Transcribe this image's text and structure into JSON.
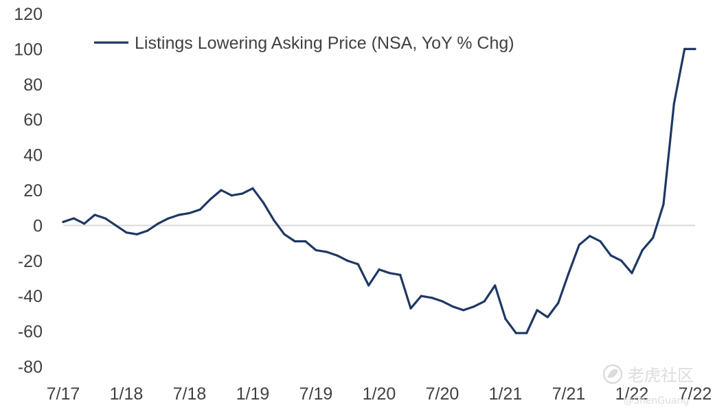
{
  "chart_data": {
    "type": "line",
    "title": "",
    "xlabel": "",
    "ylabel": "",
    "ylim": [
      -80,
      120
    ],
    "y_ticks": [
      120,
      100,
      80,
      60,
      40,
      20,
      0,
      -20,
      -40,
      -60,
      -80
    ],
    "x_ticks": [
      "7/17",
      "1/18",
      "7/18",
      "1/19",
      "7/19",
      "1/20",
      "7/20",
      "1/21",
      "7/21",
      "1/22",
      "7/22"
    ],
    "grid": false,
    "zero_line": true,
    "legend_position": "top-left",
    "series": [
      {
        "name": "Listings Lowering Asking Price (NSA, YoY % Chg)",
        "color": "#1f3864",
        "x": [
          0,
          1,
          2,
          3,
          4,
          5,
          6,
          7,
          8,
          9,
          10,
          11,
          12,
          13,
          14,
          15,
          16,
          17,
          18,
          19,
          20,
          21,
          22,
          23,
          24,
          25,
          26,
          27,
          28,
          29,
          30,
          31,
          32,
          33,
          34,
          35,
          36,
          37,
          38,
          39,
          40,
          41,
          42,
          43,
          44,
          45,
          46,
          47,
          48,
          49,
          50,
          51,
          52,
          53,
          54,
          55,
          56,
          57,
          58,
          59,
          60
        ],
        "values": [
          2,
          4,
          1,
          6,
          4,
          0,
          -4,
          -5,
          -3,
          1,
          4,
          6,
          7,
          9,
          15,
          20,
          17,
          18,
          21,
          13,
          3,
          -5,
          -9,
          -9,
          -14,
          -15,
          -17,
          -20,
          -22,
          -34,
          -25,
          -27,
          -28,
          -47,
          -40,
          -41,
          -43,
          -46,
          -48,
          -46,
          -43,
          -34,
          -53,
          -61,
          -61,
          -48,
          -52,
          -44,
          -27,
          -11,
          -6,
          -9,
          -17,
          -20,
          -27,
          -14,
          -7,
          12,
          69,
          100,
          100
        ]
      }
    ]
  },
  "watermark": {
    "logo_text": "老虎社区",
    "handle": "@ShenGuang"
  }
}
